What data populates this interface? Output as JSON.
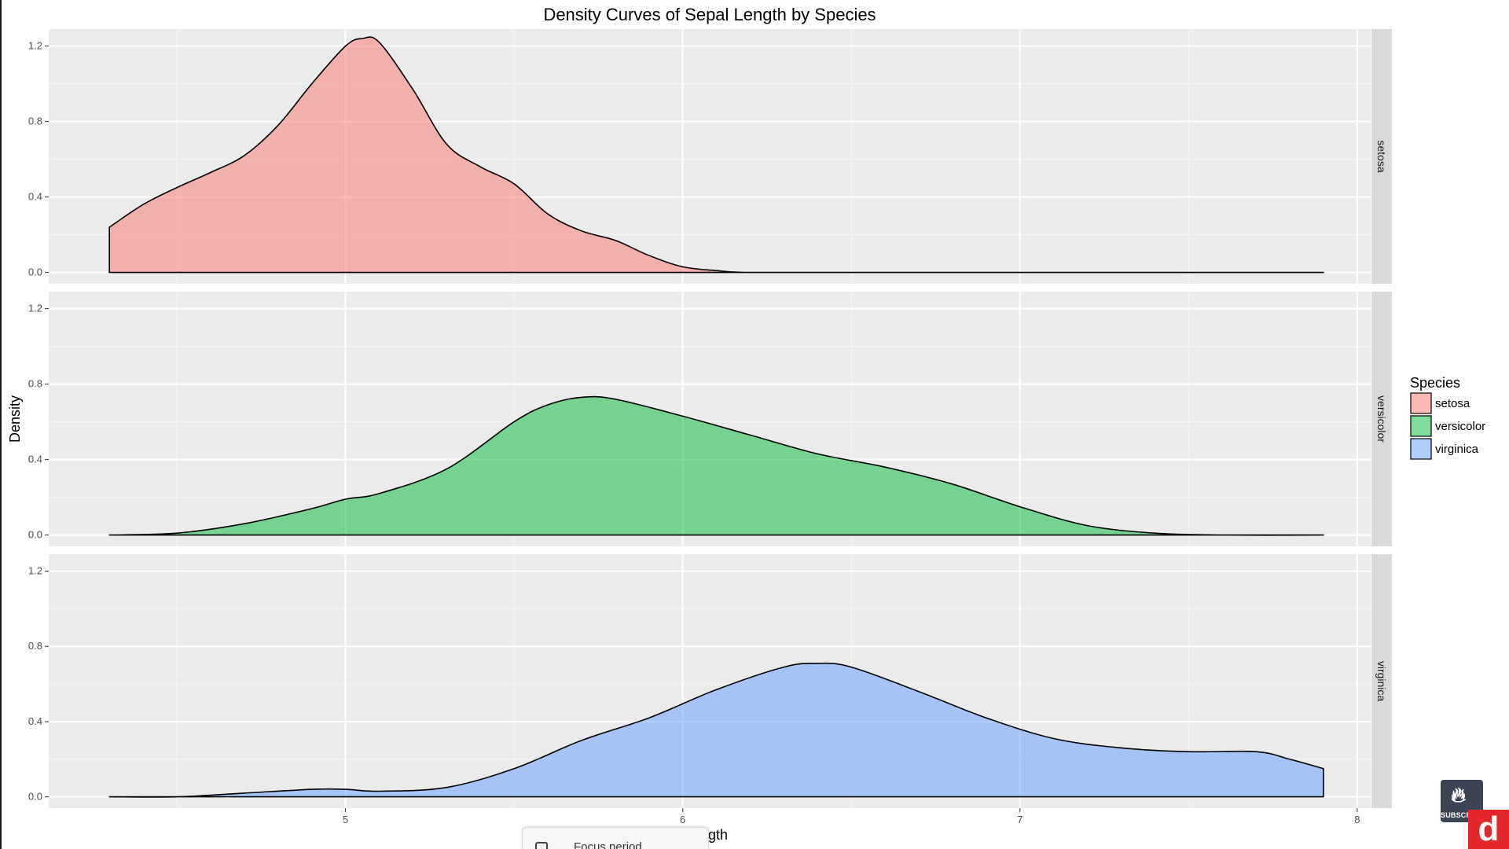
{
  "chart_data": {
    "type": "area",
    "subtype": "faceted density",
    "title": "Density Curves of Sepal Length by Species",
    "xlabel": "Sepal Length",
    "ylabel": "Density",
    "xlim": [
      4.12,
      8.04
    ],
    "ylim": [
      -0.06,
      1.29
    ],
    "x_ticks": [
      5,
      6,
      7,
      8
    ],
    "y_ticks": [
      0.0,
      0.4,
      0.8,
      1.2
    ],
    "y_tick_labels": [
      "0.0",
      "0.4",
      "0.8",
      "1.2"
    ],
    "grid": true,
    "legend": {
      "title": "Species",
      "placement": "right"
    },
    "series": [
      {
        "name": "setosa",
        "color": "#F8766D",
        "x": [
          4.3,
          4.4,
          4.5,
          4.6,
          4.7,
          4.8,
          4.9,
          5.0,
          5.05,
          5.1,
          5.2,
          5.3,
          5.4,
          5.5,
          5.6,
          5.7,
          5.8,
          5.9,
          6.0,
          6.1,
          6.2,
          6.5,
          7.0,
          7.5,
          7.9
        ],
        "y": [
          0.24,
          0.36,
          0.45,
          0.53,
          0.62,
          0.78,
          1.0,
          1.2,
          1.24,
          1.22,
          0.97,
          0.68,
          0.56,
          0.47,
          0.31,
          0.22,
          0.17,
          0.09,
          0.03,
          0.01,
          0.0,
          0.0,
          0.0,
          0.0,
          0.0
        ]
      },
      {
        "name": "versicolor",
        "color": "#00BA38",
        "x": [
          4.3,
          4.5,
          4.7,
          4.9,
          5.0,
          5.1,
          5.3,
          5.5,
          5.6,
          5.7,
          5.8,
          6.0,
          6.2,
          6.4,
          6.6,
          6.8,
          7.0,
          7.2,
          7.4,
          7.6,
          7.9
        ],
        "y": [
          0.0,
          0.01,
          0.06,
          0.14,
          0.19,
          0.22,
          0.35,
          0.6,
          0.69,
          0.73,
          0.72,
          0.63,
          0.53,
          0.43,
          0.36,
          0.27,
          0.15,
          0.05,
          0.01,
          0.0,
          0.0
        ]
      },
      {
        "name": "virginica",
        "color": "#619CFF",
        "x": [
          4.3,
          4.5,
          4.7,
          4.9,
          5.0,
          5.1,
          5.3,
          5.5,
          5.7,
          5.9,
          6.1,
          6.3,
          6.4,
          6.5,
          6.7,
          6.9,
          7.1,
          7.3,
          7.5,
          7.7,
          7.8,
          7.9
        ],
        "y": [
          0.0,
          0.0,
          0.02,
          0.04,
          0.04,
          0.03,
          0.05,
          0.15,
          0.3,
          0.42,
          0.57,
          0.69,
          0.71,
          0.69,
          0.56,
          0.42,
          0.31,
          0.26,
          0.24,
          0.24,
          0.2,
          0.15
        ]
      }
    ]
  },
  "overlay": {
    "focus_label": "Focus period"
  },
  "badge": {
    "subscribe_label": "SUBSCRIBE",
    "brand_letter": "d"
  },
  "icons": [
    "flame-icon",
    "focus-icon"
  ]
}
